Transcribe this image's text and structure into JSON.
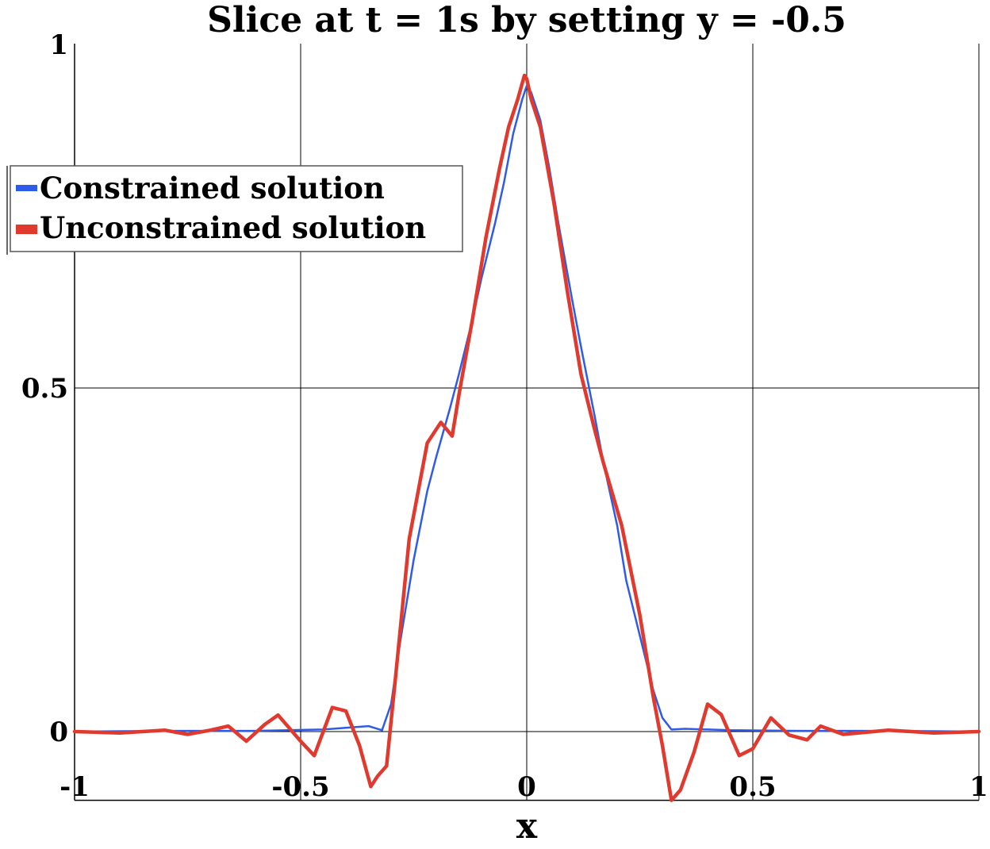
{
  "chart_data": {
    "type": "line",
    "title": "Slice at t = 1s by setting y = -0.5",
    "xlabel": "x",
    "ylabel": "",
    "xlim": [
      -1,
      1
    ],
    "ylim": [
      -0.1,
      1
    ],
    "x_ticks": [
      {
        "value": -1,
        "label": "-1"
      },
      {
        "value": -0.5,
        "label": "-0.5"
      },
      {
        "value": 0,
        "label": "0"
      },
      {
        "value": 0.5,
        "label": "0.5"
      },
      {
        "value": 1,
        "label": "1"
      }
    ],
    "y_ticks": [
      {
        "value": 0,
        "label": "0"
      },
      {
        "value": 0.5,
        "label": "0.5"
      },
      {
        "value": 1,
        "label": "1"
      }
    ],
    "grid": true,
    "legend_position": "upper-left",
    "series": [
      {
        "name": "Constrained solution",
        "color": "#2e5be8",
        "x": [
          -1,
          -0.8,
          -0.6,
          -0.45,
          -0.35,
          -0.32,
          -0.3,
          -0.28,
          -0.25,
          -0.22,
          -0.2,
          -0.17,
          -0.15,
          -0.12,
          -0.1,
          -0.07,
          -0.05,
          -0.03,
          -0.01,
          0,
          0.01,
          0.03,
          0.05,
          0.07,
          0.1,
          0.12,
          0.15,
          0.17,
          0.2,
          0.22,
          0.25,
          0.28,
          0.3,
          0.32,
          0.35,
          0.45,
          0.6,
          0.8,
          1
        ],
        "y": [
          0,
          0.001,
          0.001,
          0.003,
          0.008,
          0.002,
          0.04,
          0.13,
          0.25,
          0.35,
          0.4,
          0.47,
          0.52,
          0.6,
          0.66,
          0.74,
          0.8,
          0.87,
          0.92,
          0.94,
          0.93,
          0.89,
          0.82,
          0.74,
          0.63,
          0.56,
          0.46,
          0.39,
          0.3,
          0.22,
          0.14,
          0.06,
          0.02,
          0.003,
          0.004,
          0.002,
          0.001,
          0.001,
          0
        ]
      },
      {
        "name": "Unconstrained solution",
        "color": "#e03a2e",
        "x": [
          -1,
          -0.9,
          -0.8,
          -0.75,
          -0.7,
          -0.66,
          -0.62,
          -0.58,
          -0.55,
          -0.5,
          -0.47,
          -0.43,
          -0.4,
          -0.37,
          -0.345,
          -0.33,
          -0.31,
          -0.29,
          -0.26,
          -0.22,
          -0.19,
          -0.165,
          -0.15,
          -0.12,
          -0.09,
          -0.06,
          -0.04,
          -0.02,
          -0.005,
          0,
          0.01,
          0.03,
          0.06,
          0.09,
          0.12,
          0.15,
          0.17,
          0.21,
          0.25,
          0.28,
          0.3,
          0.32,
          0.34,
          0.37,
          0.4,
          0.43,
          0.47,
          0.5,
          0.54,
          0.58,
          0.62,
          0.65,
          0.7,
          0.8,
          0.9,
          1
        ],
        "y": [
          0,
          -0.002,
          0.002,
          -0.004,
          0.002,
          0.008,
          -0.014,
          0.01,
          0.024,
          -0.014,
          -0.035,
          0.035,
          0.03,
          -0.02,
          -0.08,
          -0.065,
          -0.05,
          0.08,
          0.28,
          0.42,
          0.45,
          0.43,
          0.49,
          0.6,
          0.72,
          0.82,
          0.88,
          0.92,
          0.955,
          0.95,
          0.92,
          0.88,
          0.77,
          0.64,
          0.52,
          0.44,
          0.39,
          0.3,
          0.17,
          0.05,
          -0.02,
          -0.1,
          -0.085,
          -0.03,
          0.04,
          0.025,
          -0.035,
          -0.025,
          0.02,
          -0.005,
          -0.012,
          0.008,
          -0.004,
          0.002,
          -0.002,
          0
        ]
      }
    ]
  }
}
